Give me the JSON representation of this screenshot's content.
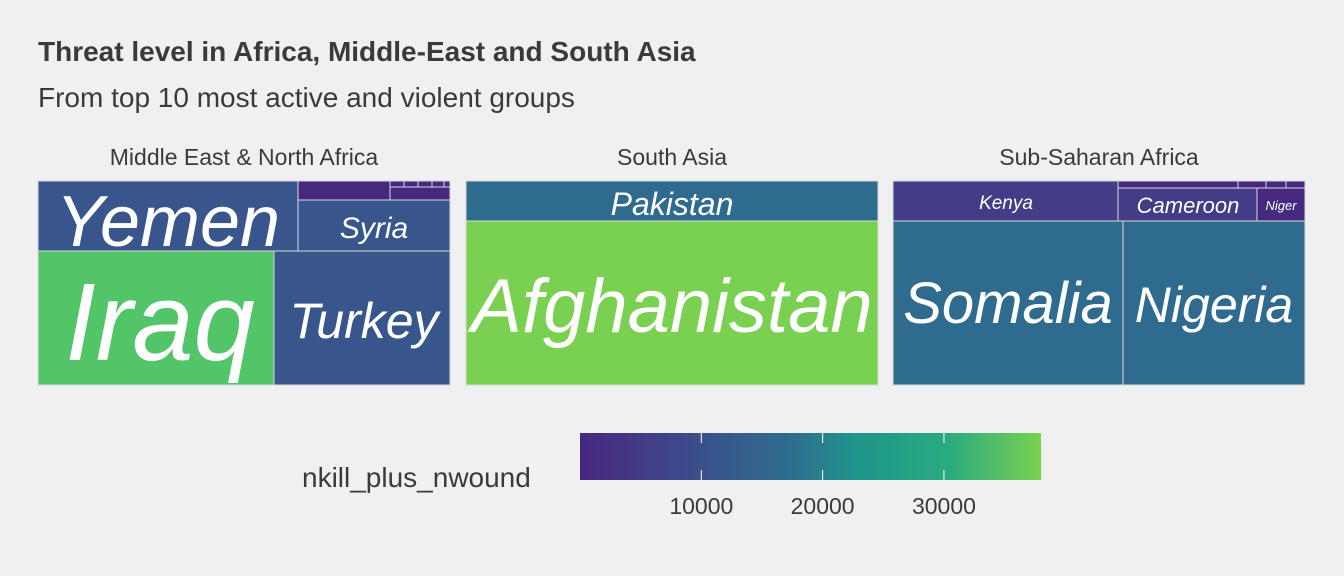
{
  "title": "Threat level in Africa, Middle-East and South Asia",
  "subtitle": "From top 10 most active and violent groups",
  "colors": {
    "low": "#440154",
    "viridis": [
      "#46287f",
      "#433d87",
      "#38568c",
      "#2f6b8e",
      "#27808e",
      "#1f958b",
      "#2aab7f",
      "#52c569",
      "#7ad151"
    ]
  },
  "chart_data": {
    "type": "treemap",
    "panels": [
      {
        "name": "Middle East & North Africa",
        "tiles": [
          {
            "label": "Yemen",
            "value": 11000
          },
          {
            "label": "Syria",
            "value": 10500
          },
          {
            "label": "Iraq",
            "value": 32000
          },
          {
            "label": "Turkey",
            "value": 11500
          }
        ]
      },
      {
        "name": "South Asia",
        "tiles": [
          {
            "label": "Pakistan",
            "value": 15500
          },
          {
            "label": "Afghanistan",
            "value": 37000
          }
        ]
      },
      {
        "name": "Sub-Saharan Africa",
        "tiles": [
          {
            "label": "Kenya",
            "value": 3000
          },
          {
            "label": "Cameroon",
            "value": 7000
          },
          {
            "label": "Niger",
            "value": 1500
          },
          {
            "label": "Somalia",
            "value": 12000
          },
          {
            "label": "Nigeria",
            "value": 15500
          }
        ]
      }
    ],
    "legend": {
      "title": "nkill_plus_nwound",
      "ticks": [
        10000,
        20000,
        30000
      ],
      "range": [
        0,
        38000
      ]
    }
  }
}
